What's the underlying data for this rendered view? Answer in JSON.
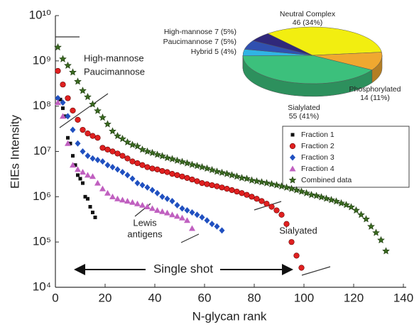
{
  "chart_data": [
    {
      "type": "scatter",
      "xlabel": "N-glycan rank",
      "ylabel": "EIEs Intensity",
      "xlim": [
        0,
        140
      ],
      "xticks": [
        0,
        20,
        40,
        60,
        80,
        100,
        120,
        140
      ],
      "ylim": [
        10000,
        10000000000
      ],
      "ylog": true,
      "yticks": [
        {
          "value": 10000,
          "label": "10⁴"
        },
        {
          "value": 100000,
          "label": "10⁵"
        },
        {
          "value": 1000000,
          "label": "10⁶"
        },
        {
          "value": 10000000,
          "label": "10⁷"
        },
        {
          "value": 100000000,
          "label": "10⁸"
        },
        {
          "value": 1000000000,
          "label": "10⁹"
        },
        {
          "value": 10000000000,
          "label": "10¹⁰"
        }
      ],
      "legend": "right",
      "annotations": [
        "High-mannose",
        "Paucimannose",
        "Lewis",
        "antigens",
        "Sialyated",
        "Single shot"
      ],
      "series": [
        {
          "name": "Fraction 1",
          "color": "#111111",
          "marker": "square",
          "x": [
            1,
            2,
            3,
            4,
            5,
            6,
            7,
            8,
            9,
            10,
            11,
            12,
            13,
            14,
            15,
            16
          ],
          "values": [
            150000000.0,
            140000000.0,
            90000000.0,
            60000000.0,
            20000000.0,
            15000000.0,
            8000000.0,
            5000000.0,
            3000000.0,
            2500000.0,
            2000000.0,
            1000000.0,
            900000.0,
            600000.0,
            450000.0,
            350000.0
          ]
        },
        {
          "name": "Fraction 2",
          "color": "#e02020",
          "marker": "circle",
          "x": [
            1,
            3,
            5,
            7,
            9,
            11,
            13,
            15,
            17,
            19,
            21,
            23,
            25,
            27,
            29,
            31,
            33,
            35,
            37,
            39,
            41,
            43,
            45,
            47,
            49,
            51,
            53,
            55,
            57,
            59,
            61,
            63,
            65,
            67,
            69,
            71,
            73,
            75,
            77,
            79,
            81,
            83,
            85,
            87,
            89,
            91,
            93,
            95,
            97,
            99
          ],
          "values": [
            600000000.0,
            300000000.0,
            150000000.0,
            80000000.0,
            50000000.0,
            30000000.0,
            25000000.0,
            22000000.0,
            20000000.0,
            12000000.0,
            11000000.0,
            10000000.0,
            9000000.0,
            8000000.0,
            7000000.0,
            6000000.0,
            5500000.0,
            5000000.0,
            4500000.0,
            4200000.0,
            4000000.0,
            3700000.0,
            3500000.0,
            3200000.0,
            3000000.0,
            2800000.0,
            2600000.0,
            2400000.0,
            2200000.0,
            2000000.0,
            1900000.0,
            1800000.0,
            1700000.0,
            1600000.0,
            1500000.0,
            1400000.0,
            1300000.0,
            1200000.0,
            1100000.0,
            1000000.0,
            900000.0,
            800000.0,
            700000.0,
            600000.0,
            500000.0,
            400000.0,
            250000.0,
            100000.0,
            50000.0,
            27000.0
          ]
        },
        {
          "name": "Fraction 3",
          "color": "#2050c0",
          "marker": "diamond",
          "x": [
            1,
            3,
            5,
            7,
            9,
            11,
            13,
            15,
            17,
            19,
            21,
            23,
            25,
            27,
            29,
            31,
            33,
            35,
            37,
            39,
            41,
            43,
            45,
            47,
            49,
            51,
            53,
            55,
            57,
            59,
            61,
            63,
            65,
            67
          ],
          "values": [
            150000000.0,
            120000000.0,
            60000000.0,
            30000000.0,
            15000000.0,
            10000000.0,
            8000000.0,
            7000000.0,
            6500000.0,
            6000000.0,
            5000000.0,
            4500000.0,
            4000000.0,
            3500000.0,
            3000000.0,
            2500000.0,
            2000000.0,
            1800000.0,
            1600000.0,
            1400000.0,
            1200000.0,
            1000000.0,
            900000.0,
            800000.0,
            650000.0,
            550000.0,
            500000.0,
            450000.0,
            400000.0,
            350000.0,
            300000.0,
            250000.0,
            220000.0,
            180000.0
          ]
        },
        {
          "name": "Fraction 4",
          "color": "#c060c0",
          "marker": "triangle",
          "x": [
            1,
            3,
            5,
            7,
            9,
            11,
            13,
            15,
            17,
            19,
            21,
            23,
            25,
            27,
            29,
            31,
            33,
            35,
            37,
            39,
            41,
            43,
            45,
            47,
            49,
            51,
            53,
            55
          ],
          "values": [
            120000000.0,
            60000000.0,
            15000000.0,
            5000000.0,
            4000000.0,
            3500000.0,
            3000000.0,
            2800000.0,
            2000000.0,
            1500000.0,
            1200000.0,
            1000000.0,
            900000.0,
            850000.0,
            800000.0,
            750000.0,
            700000.0,
            650000.0,
            600000.0,
            550000.0,
            500000.0,
            470000.0,
            440000.0,
            400000.0,
            370000.0,
            340000.0,
            300000.0,
            200000.0
          ]
        },
        {
          "name": "Combined data",
          "color": "#3a6a20",
          "marker": "star",
          "x": [
            1,
            3,
            5,
            7,
            9,
            11,
            13,
            15,
            17,
            19,
            21,
            23,
            25,
            27,
            29,
            31,
            33,
            35,
            37,
            39,
            41,
            43,
            45,
            47,
            49,
            51,
            53,
            55,
            57,
            59,
            61,
            63,
            65,
            67,
            69,
            71,
            73,
            75,
            77,
            79,
            81,
            83,
            85,
            87,
            89,
            91,
            93,
            95,
            97,
            99,
            101,
            103,
            105,
            107,
            109,
            111,
            113,
            115,
            117,
            119,
            121,
            123,
            125,
            127,
            129,
            131,
            133
          ],
          "values": [
            2000000000.0,
            1100000000.0,
            790000000.0,
            560000000.0,
            350000000.0,
            220000000.0,
            160000000.0,
            110000000.0,
            79000000.0,
            56000000.0,
            40000000.0,
            28000000.0,
            22000000.0,
            19000000.0,
            16000000.0,
            14000000.0,
            13000000.0,
            11000000.0,
            10000000.0,
            9300000.0,
            8500000.0,
            7900000.0,
            7200000.0,
            6800000.0,
            6300000.0,
            5900000.0,
            5500000.0,
            5100000.0,
            4800000.0,
            4500000.0,
            4200000.0,
            3900000.0,
            3600000.0,
            3400000.0,
            3200000.0,
            3000000.0,
            2800000.0,
            2600000.0,
            2500000.0,
            2300000.0,
            2200000.0,
            2100000.0,
            2000000.0,
            1900000.0,
            1800000.0,
            1700000.0,
            1600000.0,
            1500000.0,
            1400000.0,
            1300000.0,
            1200000.0,
            1100000.0,
            1050000.0,
            980000.0,
            910000.0,
            850000.0,
            790000.0,
            720000.0,
            660000.0,
            590000.0,
            500000.0,
            400000.0,
            320000.0,
            220000.0,
            160000.0,
            110000.0,
            63000.0
          ]
        }
      ]
    },
    {
      "type": "pie",
      "categories": [
        "Neutral Complex",
        "Phosphorylated",
        "Sialylated",
        "Hybrid",
        "Paucimannose",
        "High-mannose"
      ],
      "values": [
        46,
        14,
        55,
        5,
        7,
        7
      ],
      "value_labels": [
        "46 (34%)",
        "14 (11%)",
        "55 (41%)",
        "5 (4%)",
        "7 (5%)",
        "7 (5%)"
      ],
      "colors": [
        "#f2ee10",
        "#f0a830",
        "#3cc07c",
        "#30b4e4",
        "#3050b0",
        "#30287a"
      ]
    }
  ]
}
